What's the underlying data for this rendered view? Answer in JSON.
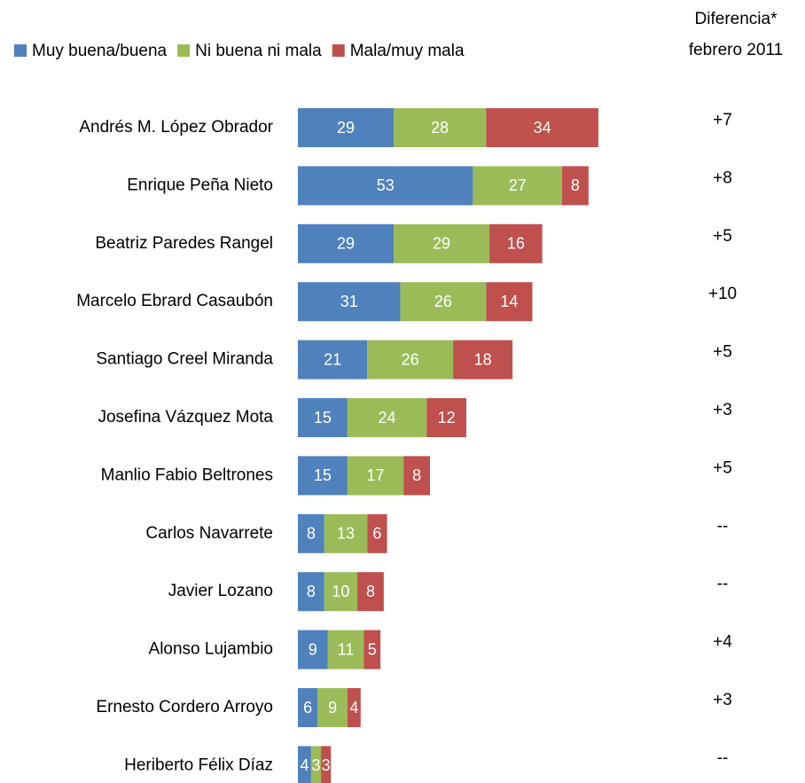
{
  "chart_data": {
    "type": "bar",
    "orientation": "horizontal",
    "stacked": true,
    "categories": [
      "Andrés M. López Obrador",
      "Enrique Peña Nieto",
      "Beatriz Paredes Rangel",
      "Marcelo Ebrard Casaubón",
      "Santiago Creel Miranda",
      "Josefina Vázquez Mota",
      "Manlio Fabio Beltrones",
      "Carlos Navarrete",
      "Javier Lozano",
      "Alonso Lujambio",
      "Ernesto Cordero Arroyo",
      "Heriberto Félix Díaz"
    ],
    "series": [
      {
        "name": "Muy buena/buena",
        "color": "#4f81bd",
        "values": [
          29,
          53,
          29,
          31,
          21,
          15,
          15,
          8,
          8,
          9,
          6,
          4
        ]
      },
      {
        "name": "Ni buena ni mala",
        "color": "#9bbb59",
        "values": [
          28,
          27,
          29,
          26,
          26,
          24,
          17,
          13,
          10,
          11,
          9,
          3
        ]
      },
      {
        "name": "Mala/muy mala",
        "color": "#c0504d",
        "values": [
          34,
          8,
          16,
          14,
          18,
          12,
          8,
          6,
          8,
          5,
          4,
          3
        ]
      }
    ],
    "legend": "top",
    "difference": {
      "title": [
        "Diferencia*",
        "febrero 2011"
      ],
      "labels": [
        "+7",
        "+8",
        "+5",
        "+10",
        "+5",
        "+3",
        "+5",
        "--",
        "--",
        "+4",
        "+3",
        "--"
      ]
    }
  }
}
